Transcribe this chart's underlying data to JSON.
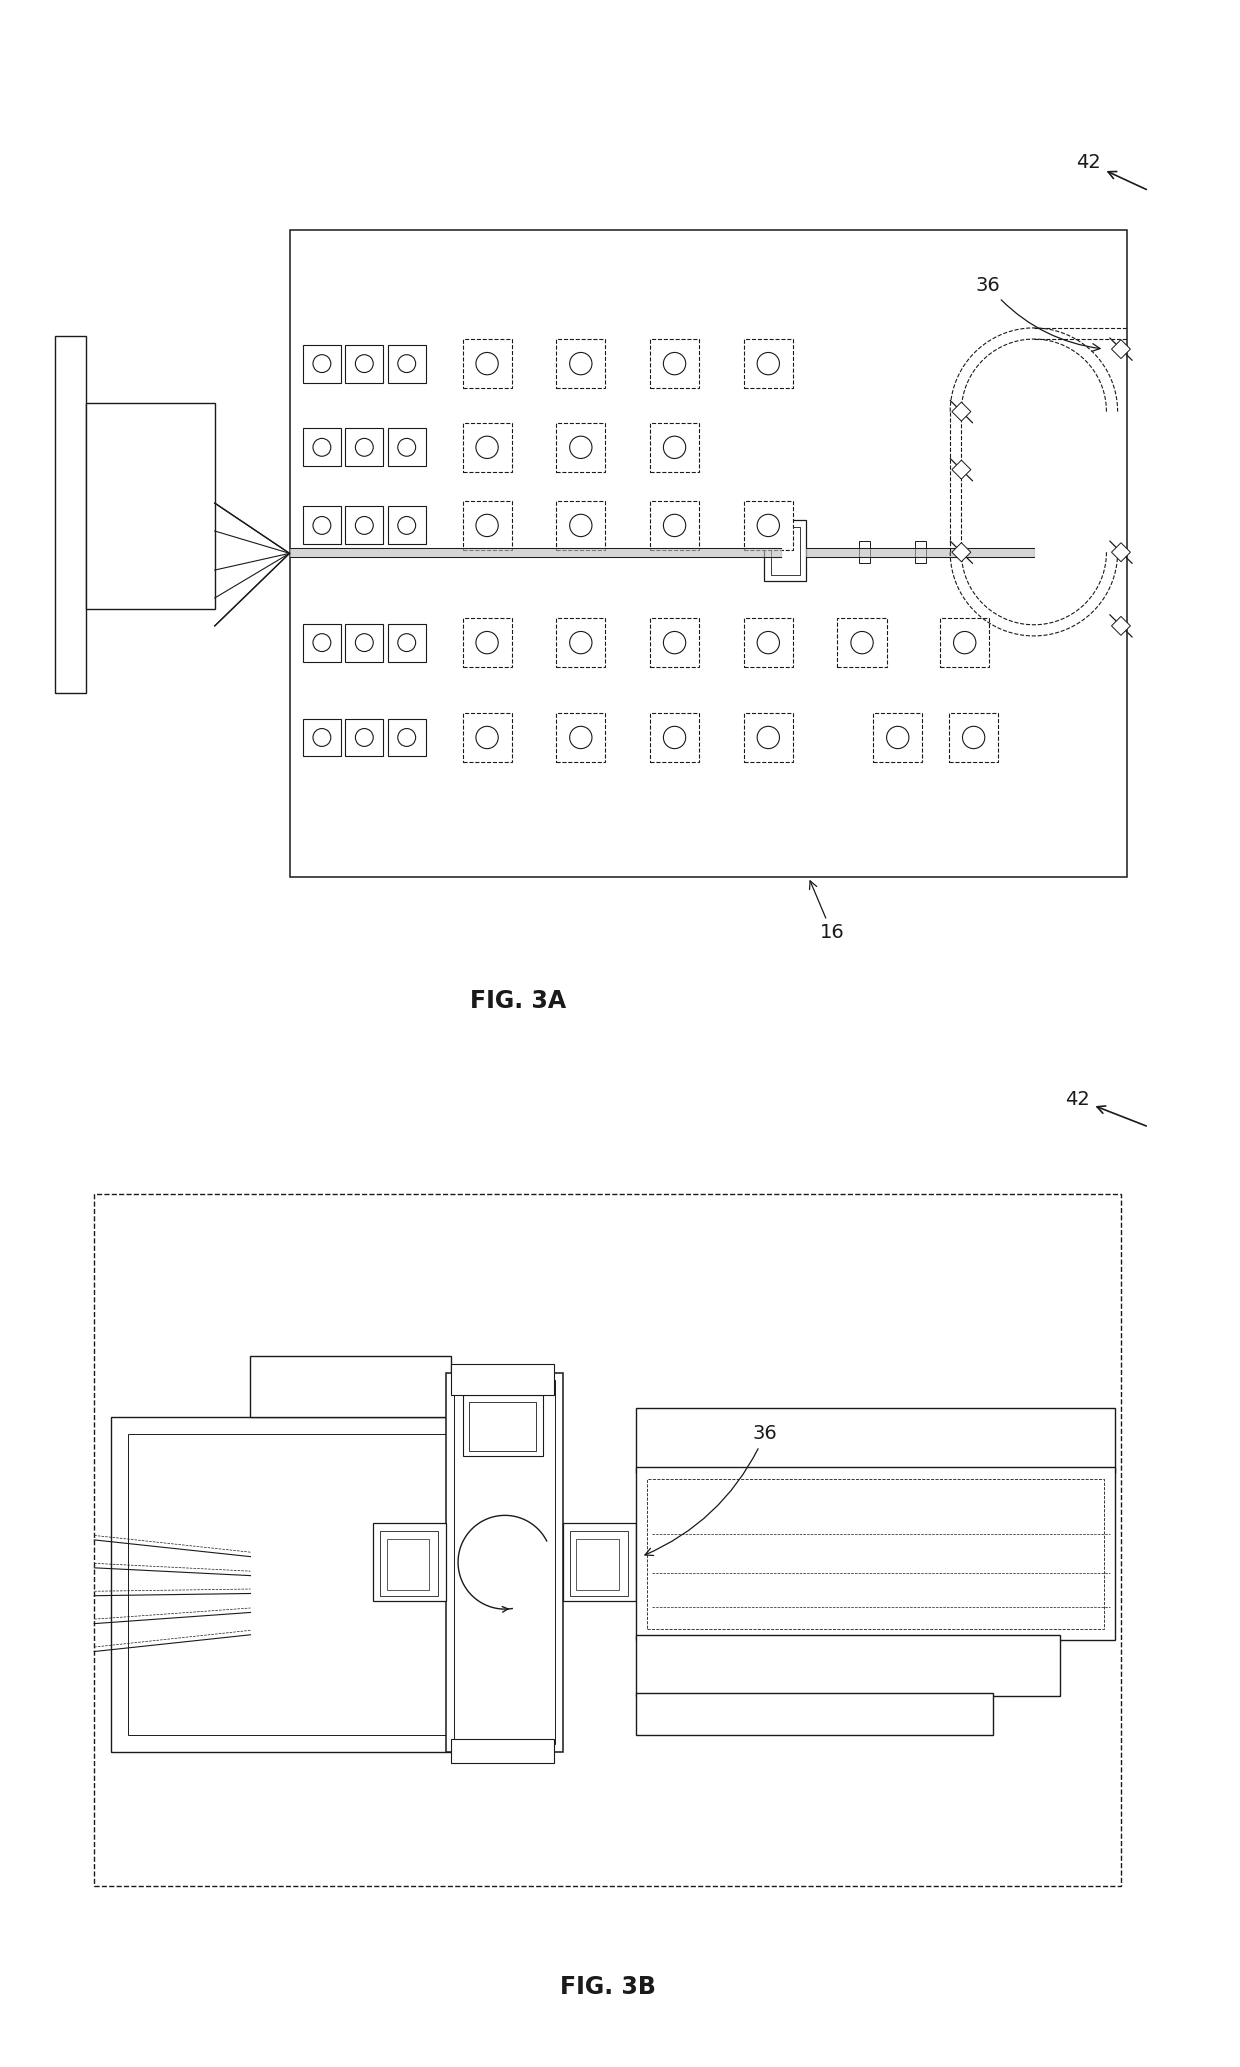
{
  "fig_width": 12.4,
  "fig_height": 20.67,
  "bg_color": "#ffffff",
  "lc": "#1a1a1a",
  "fig3a_label": "FIG. 3A",
  "fig3b_label": "FIG. 3B",
  "label_42": "42",
  "label_36": "36",
  "label_16": "16"
}
